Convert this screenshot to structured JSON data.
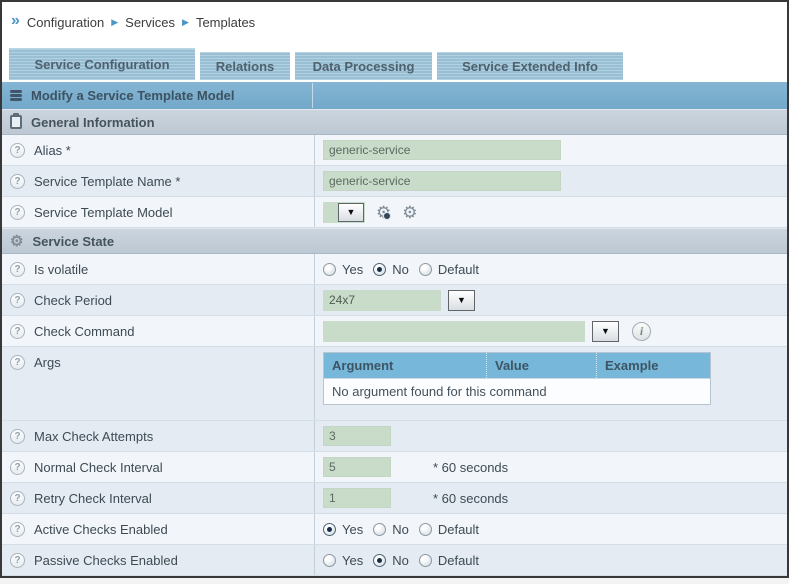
{
  "colors": {
    "tab_blue": "#9cc3d8",
    "header_blue": "#7bafd0",
    "section_gray": "#c4cfd9",
    "row_light": "#f2f6fa",
    "row_dark": "#e4ebf2",
    "input_green": "#c9dbc9",
    "args_header_blue": "#76b7da"
  },
  "breadcrumb": {
    "items": [
      "Configuration",
      "Services",
      "Templates"
    ]
  },
  "tabs": [
    {
      "label": "Service Configuration",
      "active": true
    },
    {
      "label": "Relations",
      "active": false
    },
    {
      "label": "Data Processing",
      "active": false
    },
    {
      "label": "Service Extended Info",
      "active": false
    }
  ],
  "header": {
    "title": "Modify a Service Template Model"
  },
  "general": {
    "section_title": "General Information",
    "alias": {
      "label": "Alias *",
      "value": "generic-service"
    },
    "template_name": {
      "label": "Service Template Name *",
      "value": "generic-service"
    },
    "template_model": {
      "label": "Service Template Model",
      "value": ""
    }
  },
  "state": {
    "section_title": "Service State",
    "is_volatile": {
      "label": "Is volatile",
      "options": [
        "Yes",
        "No",
        "Default"
      ],
      "selected": "No"
    },
    "check_period": {
      "label": "Check Period",
      "value": "24x7"
    },
    "check_command": {
      "label": "Check Command",
      "value": ""
    },
    "args": {
      "label": "Args",
      "table": {
        "headers": [
          "Argument",
          "Value",
          "Example"
        ],
        "empty_message": "No argument found for this command"
      }
    },
    "max_check_attempts": {
      "label": "Max Check Attempts",
      "value": "3"
    },
    "normal_check_interval": {
      "label": "Normal Check Interval",
      "value": "5",
      "suffix": "* 60 seconds"
    },
    "retry_check_interval": {
      "label": "Retry Check Interval",
      "value": "1",
      "suffix": "* 60 seconds"
    },
    "active_checks_enabled": {
      "label": "Active Checks Enabled",
      "options": [
        "Yes",
        "No",
        "Default"
      ],
      "selected": "Yes"
    },
    "passive_checks_enabled": {
      "label": "Passive Checks Enabled",
      "options": [
        "Yes",
        "No",
        "Default"
      ],
      "selected": "No"
    }
  }
}
